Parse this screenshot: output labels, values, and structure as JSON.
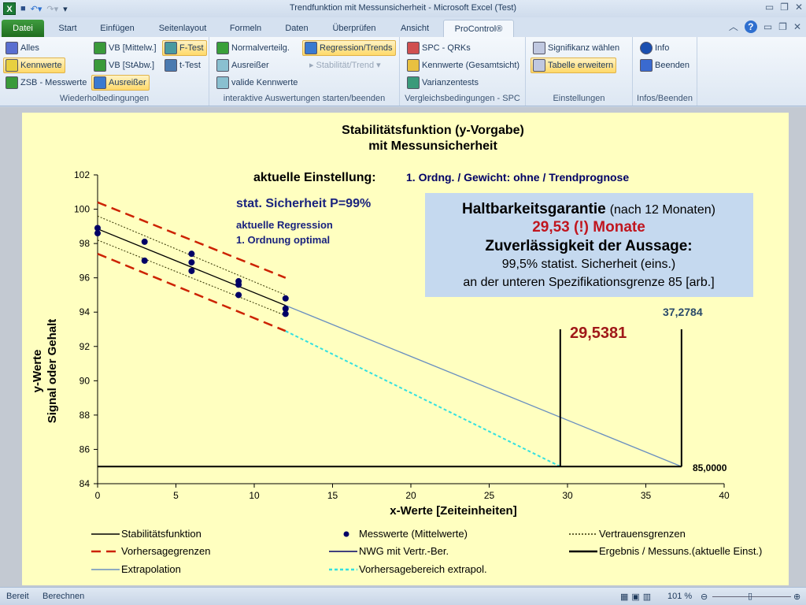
{
  "window": {
    "title": "Trendfunktion mit Messunsicherheit  -  Microsoft Excel (Test)"
  },
  "tabs": [
    "Datei",
    "Start",
    "Einfügen",
    "Seitenlayout",
    "Formeln",
    "Daten",
    "Überprüfen",
    "Ansicht",
    "ProControl®"
  ],
  "active_tab": "ProControl®",
  "ribbon": {
    "groups": [
      {
        "label": "Wiederholbedingungen",
        "buttons": [
          "Alles",
          "Kennwerte",
          "ZSB - Messwerte",
          "VB [Mittelw.]",
          "VB [StAbw.]",
          "Ausreißer",
          "F-Test",
          "t-Test"
        ]
      },
      {
        "label": "interaktive Auswertungen starten/beenden",
        "buttons": [
          "Normalverteilg.",
          "Ausreißer",
          "valide Kennwerte",
          "Regression/Trends",
          "Stabilität/Trend"
        ]
      },
      {
        "label": "Vergleichsbedingungen - SPC",
        "buttons": [
          "SPC - QRKs",
          "Kennwerte (Gesamtsicht)",
          "Varianzentests"
        ]
      },
      {
        "label": "Einstellungen",
        "buttons": [
          "Signifikanz wählen",
          "Tabelle erweitern"
        ]
      },
      {
        "label": "Infos/Beenden",
        "buttons": [
          "Info",
          "Beenden"
        ]
      }
    ],
    "highlighted": [
      "Kennwerte",
      "Ausreißer",
      "F-Test",
      "Regression/Trends",
      "Tabelle erweitern"
    ]
  },
  "status": {
    "ready": "Bereit",
    "calc": "Berechnen",
    "zoom": "101 %"
  },
  "chart_data": {
    "type": "scatter",
    "title": "Stabilitätsfunktion (y-Vorgabe)",
    "subtitle": "mit Messunsicherheit",
    "xlabel": "x-Werte [Zeiteinheiten]",
    "ylabel": "y-Werte",
    "ylabel2": "Signal oder Gehalt",
    "xlim": [
      0,
      40
    ],
    "ylim": [
      84,
      102
    ],
    "xticks": [
      0,
      5,
      10,
      15,
      20,
      25,
      30,
      35,
      40
    ],
    "yticks": [
      84,
      86,
      88,
      90,
      92,
      94,
      96,
      98,
      100,
      102
    ],
    "annotations": {
      "setting_label": "aktuelle Einstellung:",
      "setting_value": "1. Ordng. / Gewicht: ohne / Trendprognose",
      "confidence": "stat. Sicherheit P=99%",
      "regression1": "aktuelle Regression",
      "regression2": "1. Ordnung optimal",
      "box_title": "Haltbarkeitsgarantie",
      "box_title_suffix": "(nach 12 Monaten)",
      "box_result": "29,53 (!) Monate",
      "box_reliability": "Zuverlässigkeit der Aussage:",
      "box_line4": "99,5% statist. Sicherheit (eins.)",
      "box_line5": "an der unteren Spezifikationsgrenze 85 [arb.]",
      "result_x": "29,5381",
      "end_x": "37,2784",
      "limit_y": "85,0000"
    },
    "measurements": [
      [
        0,
        98.9
      ],
      [
        0,
        98.6
      ],
      [
        3,
        98.1
      ],
      [
        3,
        97.0
      ],
      [
        6,
        97.4
      ],
      [
        6,
        96.9
      ],
      [
        6,
        96.4
      ],
      [
        9,
        95.8
      ],
      [
        9,
        95.6
      ],
      [
        9,
        95.0
      ],
      [
        12,
        94.8
      ],
      [
        12,
        94.2
      ],
      [
        12,
        93.9
      ]
    ],
    "series": [
      {
        "name": "Stabilitätsfunktion",
        "color": "#000000",
        "style": "solid",
        "points": [
          [
            0,
            98.85
          ],
          [
            12,
            94.39
          ]
        ]
      },
      {
        "name": "Vertrauensgrenzen",
        "color": "#333300",
        "style": "dotted",
        "points": [
          [
            0,
            99.6
          ],
          [
            12,
            95.0
          ]
        ]
      },
      {
        "name": "Vertrauensgrenzen",
        "color": "#333300",
        "style": "dotted",
        "points": [
          [
            0,
            98.2
          ],
          [
            12,
            93.8
          ]
        ]
      },
      {
        "name": "Vorhersagegrenzen",
        "color": "#cc2200",
        "style": "dashed",
        "points": [
          [
            0,
            100.4
          ],
          [
            12,
            96.0
          ]
        ]
      },
      {
        "name": "Vorhersagegrenzen",
        "color": "#cc2200",
        "style": "dashed",
        "points": [
          [
            0,
            97.4
          ],
          [
            12,
            92.9
          ]
        ]
      },
      {
        "name": "Extrapolation",
        "color": "#6a8fc0",
        "style": "solid",
        "points": [
          [
            12,
            94.39
          ],
          [
            37.2784,
            85
          ]
        ]
      },
      {
        "name": "Vorhersagebereich extrapol.",
        "color": "#33e0e0",
        "style": "dashed",
        "points": [
          [
            12,
            92.9
          ],
          [
            29.5381,
            85
          ]
        ]
      },
      {
        "name": "NWG mit Vertr.-Ber.",
        "color": "#000000",
        "style": "solid",
        "points": [
          [
            0,
            85
          ],
          [
            37.2784,
            85
          ]
        ]
      },
      {
        "name": "Ergebnis / Messuns.(aktuelle Einst.)",
        "color": "#000000",
        "style": "solid",
        "points": [
          [
            29.5381,
            85
          ],
          [
            29.5381,
            93
          ]
        ]
      },
      {
        "name": "Ergebnis / Messuns.(aktuelle Einst.)",
        "color": "#000000",
        "style": "solid",
        "points": [
          [
            37.2784,
            85
          ],
          [
            37.2784,
            93
          ]
        ]
      }
    ],
    "legend": [
      {
        "label": "Stabilitätsfunktion",
        "color": "#000000",
        "style": "solid"
      },
      {
        "label": "Messwerte (Mittelwerte)",
        "color": "#000066",
        "style": "marker"
      },
      {
        "label": "Vertrauensgrenzen",
        "color": "#333300",
        "style": "dotted"
      },
      {
        "label": "Vorhersagegrenzen",
        "color": "#cc2200",
        "style": "dashed"
      },
      {
        "label": "NWG mit Vertr.-Ber.",
        "color": "#000066",
        "style": "solid"
      },
      {
        "label": "Ergebnis / Messuns.(aktuelle Einst.)",
        "color": "#000000",
        "style": "thick"
      },
      {
        "label": "Extrapolation",
        "color": "#6a8fc0",
        "style": "solid"
      },
      {
        "label": "Vorhersagebereich extrapol.",
        "color": "#33e0e0",
        "style": "dashed"
      }
    ],
    "legend_position": "bottom",
    "grid": false
  }
}
